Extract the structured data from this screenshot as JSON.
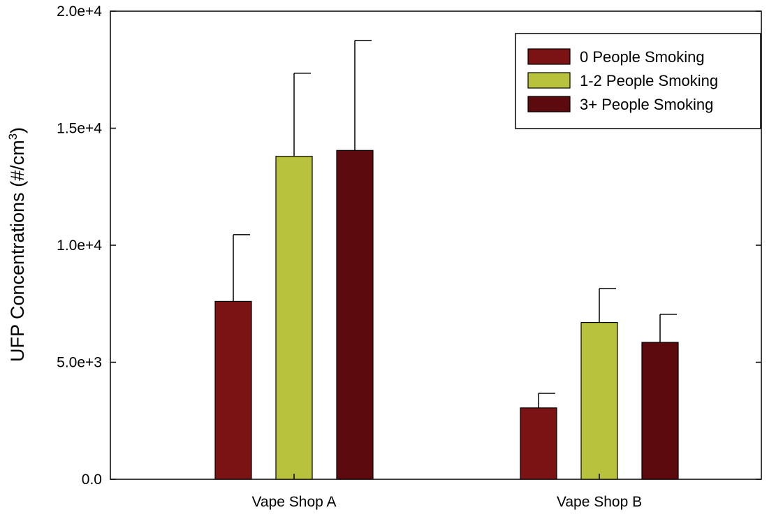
{
  "chart_data": {
    "type": "bar",
    "title": "",
    "xlabel": "",
    "ylabel": "UFP Concentrations (#/cm",
    "ylabel_superscript": "3",
    "ylabel_suffix": ")",
    "categories": [
      "Vape Shop A",
      "Vape Shop B"
    ],
    "ylim": [
      0,
      20000
    ],
    "yticks": [
      0,
      5000,
      10000,
      15000,
      20000
    ],
    "ytick_labels": [
      "0.0",
      "5.0e+3",
      "1.0e+4",
      "1.5e+4",
      "2.0e+4"
    ],
    "series": [
      {
        "name": "0 People Smoking",
        "values": [
          7600,
          3050
        ],
        "errors": [
          2850,
          620
        ],
        "color": "#7b1315"
      },
      {
        "name": "1-2 People Smoking",
        "values": [
          13800,
          6700
        ],
        "errors": [
          3550,
          1450
        ],
        "color": "#b8c23c"
      },
      {
        "name": "3+ People Smoking",
        "values": [
          14050,
          5850
        ],
        "errors": [
          4700,
          1200
        ],
        "color": "#5c0a0d"
      }
    ],
    "legend_position": "top-right",
    "grid": false
  }
}
